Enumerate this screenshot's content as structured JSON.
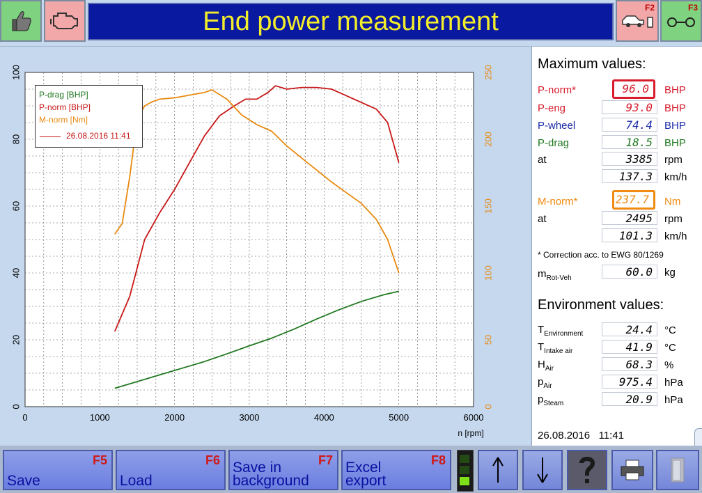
{
  "header": {
    "title": "End power measurement",
    "f2_key": "F2",
    "f3_key": "F3"
  },
  "chart_data": {
    "type": "line",
    "xlabel": "n [rpm]",
    "x_ticks": [
      "0",
      "1000",
      "2000",
      "3000",
      "4000",
      "5000",
      "6000"
    ],
    "y_left_ticks": [
      "0",
      "20",
      "40",
      "60",
      "80",
      "100"
    ],
    "y_right_ticks": [
      "0",
      "50",
      "100",
      "150",
      "200",
      "250"
    ],
    "xlim": [
      0,
      6000
    ],
    "ylim_left": [
      0,
      100
    ],
    "ylim_right": [
      0,
      250
    ],
    "grid": true,
    "legend_placement": "top-left",
    "legend": [
      "P-drag [BHP]",
      "P-norm [BHP]",
      "M-norm [Nm]"
    ],
    "legend_date": "26.08.2016 11:41",
    "series": [
      {
        "name": "P-drag [BHP]",
        "axis": "left",
        "color": "#207820",
        "x": [
          1200,
          1500,
          1800,
          2100,
          2400,
          2700,
          3000,
          3300,
          3600,
          3900,
          4200,
          4500,
          4800,
          5000
        ],
        "y": [
          5.5,
          7.5,
          9.5,
          11.5,
          13.5,
          15.8,
          18.2,
          20.5,
          23.2,
          26.2,
          29.0,
          31.5,
          33.5,
          34.5
        ]
      },
      {
        "name": "P-norm [BHP]",
        "axis": "left",
        "color": "#c81818",
        "x": [
          1200,
          1400,
          1600,
          1800,
          2000,
          2200,
          2400,
          2600,
          2800,
          2950,
          3100,
          3250,
          3350,
          3500,
          3700,
          3900,
          4100,
          4300,
          4500,
          4700,
          4850,
          5000
        ],
        "y": [
          22.5,
          33,
          50,
          58,
          65,
          73,
          81,
          87,
          90,
          92,
          92,
          94,
          96,
          95,
          95.5,
          95.5,
          95,
          93,
          91,
          89,
          85,
          73
        ]
      },
      {
        "name": "M-norm [Nm]",
        "axis": "right",
        "color": "#e88a10",
        "x": [
          1200,
          1300,
          1400,
          1500,
          1600,
          1700,
          1800,
          2000,
          2200,
          2400,
          2500,
          2700,
          2900,
          3100,
          3300,
          3500,
          3700,
          3900,
          4100,
          4300,
          4500,
          4700,
          4850,
          5000
        ],
        "y": [
          129,
          137,
          172,
          215,
          225,
          228,
          230,
          231,
          233,
          235,
          237,
          230,
          218,
          211,
          206,
          195,
          186,
          177,
          168,
          160,
          152,
          140,
          125,
          100
        ]
      }
    ]
  },
  "right_panel": {
    "max_title": "Maximum values:",
    "rows": [
      {
        "label": "P-norm*",
        "value": "96.0",
        "unit": "BHP"
      },
      {
        "label": "P-eng",
        "value": "93.0",
        "unit": "BHP"
      },
      {
        "label": "P-wheel",
        "value": "74.4",
        "unit": "BHP"
      },
      {
        "label": "P-drag",
        "value": "18.5",
        "unit": "BHP"
      },
      {
        "label": "at",
        "value": "3385",
        "unit": "rpm"
      },
      {
        "label": "",
        "value": "137.3",
        "unit": "km/h"
      },
      {
        "label": "M-norm*",
        "value": "237.7",
        "unit": "Nm"
      },
      {
        "label": "at",
        "value": "2495",
        "unit": "rpm"
      },
      {
        "label": "",
        "value": "101.3",
        "unit": "km/h"
      }
    ],
    "correction_note": "* Correction acc. to EWG 80/1269",
    "mass": {
      "label_main": "m",
      "label_sub": "Rot-Veh",
      "value": "60.0",
      "unit": "kg"
    },
    "env_title": "Environment values:",
    "env_rows": [
      {
        "main": "T",
        "sub": "Environment",
        "value": "24.4",
        "unit": "°C"
      },
      {
        "main": "T",
        "sub": "Intake air",
        "value": "41.9",
        "unit": "°C"
      },
      {
        "main": "H",
        "sub": "Air",
        "value": "68.3",
        "unit": "%"
      },
      {
        "main": "p",
        "sub": "Air",
        "value": "975.4",
        "unit": "hPa"
      },
      {
        "main": "p",
        "sub": "Steam",
        "value": "20.9",
        "unit": "hPa"
      }
    ],
    "timestamp": "26.08.2016   11:41"
  },
  "toolbar": {
    "save_label": "Save",
    "save_key": "F5",
    "load_label": "Load",
    "load_key": "F6",
    "bg_label": "Save in\nbackground",
    "bg_key": "F7",
    "excel_label": "Excel\nexport",
    "excel_key": "F8"
  },
  "colors": {
    "title_bg": "#0a1aa0",
    "title_fg": "#f4ee2a",
    "accent_red": "#d81c2c",
    "accent_orange": "#f08a10"
  }
}
